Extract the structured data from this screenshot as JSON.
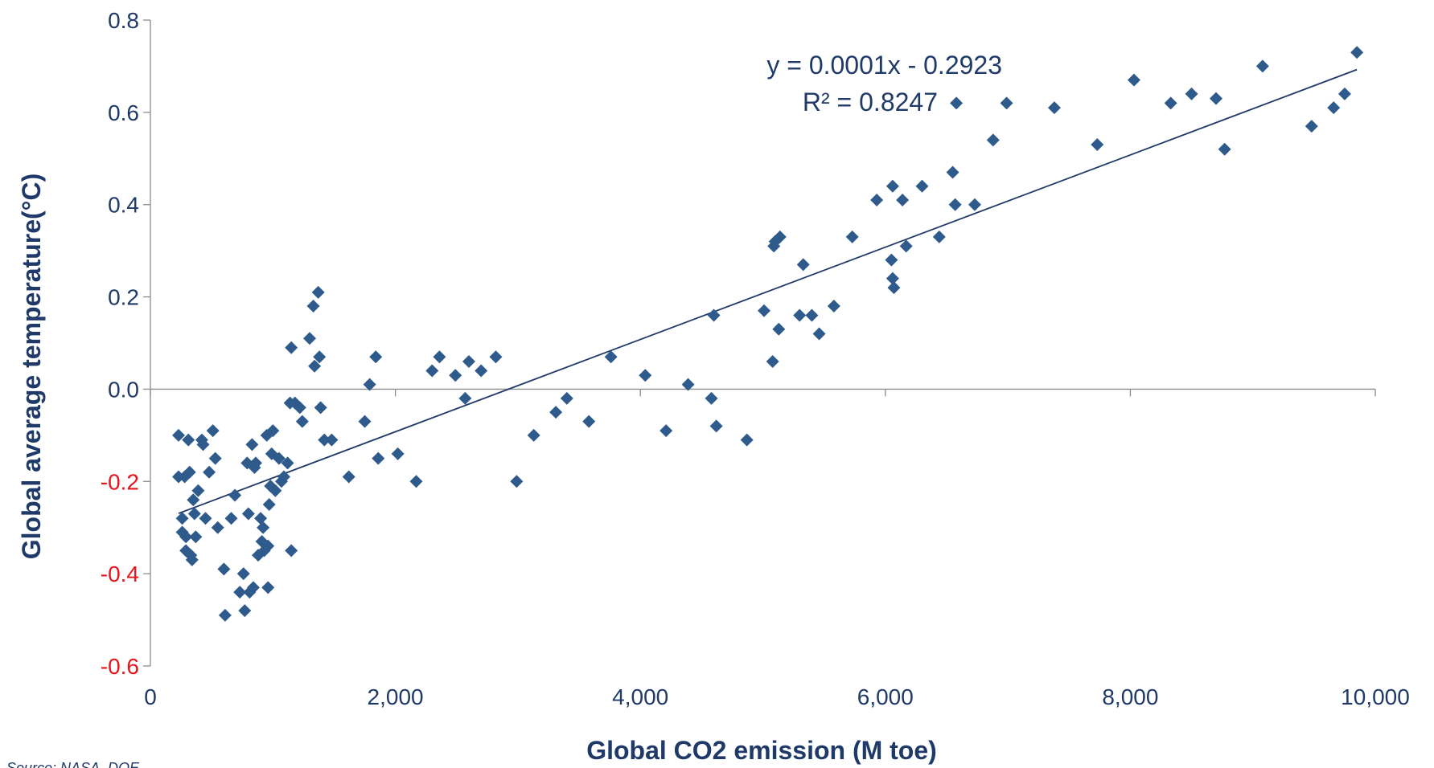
{
  "chart_data": {
    "type": "scatter",
    "title": "",
    "xlabel": "Global CO2 emission (M toe)",
    "ylabel": "Global average temperature(°C)",
    "xlim": [
      0,
      10000
    ],
    "ylim": [
      -0.6,
      0.8
    ],
    "x_ticks": [
      0,
      2000,
      4000,
      6000,
      8000,
      10000
    ],
    "x_tick_labels": [
      "0",
      "2,000",
      "4,000",
      "6,000",
      "8,000",
      "10,000"
    ],
    "y_ticks": [
      0.8,
      0.6,
      0.4,
      0.2,
      0.0,
      -0.2,
      -0.4,
      -0.6
    ],
    "y_tick_labels": [
      "0.8",
      "0.6",
      "0.4",
      "0.2",
      "0.0",
      "-0.2",
      "-0.4",
      "-0.6"
    ],
    "negative_tick_color": "#e8141c",
    "positive_tick_color": "#1f3a68",
    "marker_color": "#2e5b8c",
    "trendline_color": "#1f3a68",
    "grid": false,
    "legend": "none",
    "trendline": {
      "slope": 0.0001,
      "intercept": -0.2923,
      "x_range": [
        230,
        9850
      ],
      "equation_label": "y = 0.0001x - 0.2923",
      "r2_label": "R² = 0.8247"
    },
    "source_label": "Source: NASA, DOE",
    "series": [
      {
        "points": [
          [
            230,
            -0.1
          ],
          [
            230,
            -0.19
          ],
          [
            260,
            -0.28
          ],
          [
            260,
            -0.31
          ],
          [
            280,
            -0.19
          ],
          [
            290,
            -0.32
          ],
          [
            290,
            -0.35
          ],
          [
            310,
            -0.11
          ],
          [
            320,
            -0.18
          ],
          [
            330,
            -0.36
          ],
          [
            340,
            -0.37
          ],
          [
            350,
            -0.24
          ],
          [
            360,
            -0.27
          ],
          [
            370,
            -0.32
          ],
          [
            390,
            -0.22
          ],
          [
            420,
            -0.11
          ],
          [
            430,
            -0.12
          ],
          [
            450,
            -0.28
          ],
          [
            480,
            -0.18
          ],
          [
            510,
            -0.09
          ],
          [
            530,
            -0.15
          ],
          [
            550,
            -0.3
          ],
          [
            600,
            -0.39
          ],
          [
            610,
            -0.49
          ],
          [
            660,
            -0.28
          ],
          [
            690,
            -0.23
          ],
          [
            730,
            -0.44
          ],
          [
            760,
            -0.4
          ],
          [
            770,
            -0.48
          ],
          [
            790,
            -0.16
          ],
          [
            800,
            -0.27
          ],
          [
            810,
            -0.44
          ],
          [
            830,
            -0.12
          ],
          [
            840,
            -0.43
          ],
          [
            850,
            -0.17
          ],
          [
            860,
            -0.16
          ],
          [
            880,
            -0.36
          ],
          [
            900,
            -0.28
          ],
          [
            910,
            -0.33
          ],
          [
            920,
            -0.3
          ],
          [
            930,
            -0.35
          ],
          [
            950,
            -0.1
          ],
          [
            960,
            -0.34
          ],
          [
            960,
            -0.43
          ],
          [
            970,
            -0.25
          ],
          [
            980,
            -0.21
          ],
          [
            990,
            -0.14
          ],
          [
            1000,
            -0.09
          ],
          [
            1020,
            -0.22
          ],
          [
            1050,
            -0.15
          ],
          [
            1070,
            -0.2
          ],
          [
            1090,
            -0.19
          ],
          [
            1120,
            -0.16
          ],
          [
            1140,
            -0.03
          ],
          [
            1150,
            -0.35
          ],
          [
            1150,
            0.09
          ],
          [
            1180,
            -0.03
          ],
          [
            1220,
            -0.04
          ],
          [
            1240,
            -0.07
          ],
          [
            1300,
            0.11
          ],
          [
            1330,
            0.18
          ],
          [
            1340,
            0.05
          ],
          [
            1370,
            0.21
          ],
          [
            1380,
            0.07
          ],
          [
            1390,
            -0.04
          ],
          [
            1420,
            -0.11
          ],
          [
            1480,
            -0.11
          ],
          [
            1620,
            -0.19
          ],
          [
            1750,
            -0.07
          ],
          [
            1790,
            0.01
          ],
          [
            1840,
            0.07
          ],
          [
            1860,
            -0.15
          ],
          [
            2020,
            -0.14
          ],
          [
            2170,
            -0.2
          ],
          [
            2300,
            0.04
          ],
          [
            2360,
            0.07
          ],
          [
            2490,
            0.03
          ],
          [
            2570,
            -0.02
          ],
          [
            2600,
            0.06
          ],
          [
            2700,
            0.04
          ],
          [
            2820,
            0.07
          ],
          [
            2990,
            -0.2
          ],
          [
            3130,
            -0.1
          ],
          [
            3310,
            -0.05
          ],
          [
            3400,
            -0.02
          ],
          [
            3580,
            -0.07
          ],
          [
            3760,
            0.07
          ],
          [
            4040,
            0.03
          ],
          [
            4210,
            -0.09
          ],
          [
            4390,
            0.01
          ],
          [
            4580,
            -0.02
          ],
          [
            4600,
            0.16
          ],
          [
            4620,
            -0.08
          ],
          [
            4870,
            -0.11
          ],
          [
            5010,
            0.17
          ],
          [
            5080,
            0.06
          ],
          [
            5090,
            0.31
          ],
          [
            5100,
            0.32
          ],
          [
            5130,
            0.13
          ],
          [
            5140,
            0.33
          ],
          [
            5300,
            0.16
          ],
          [
            5330,
            0.27
          ],
          [
            5400,
            0.16
          ],
          [
            5460,
            0.12
          ],
          [
            5580,
            0.18
          ],
          [
            5730,
            0.33
          ],
          [
            5930,
            0.41
          ],
          [
            6050,
            0.28
          ],
          [
            6060,
            0.44
          ],
          [
            6060,
            0.24
          ],
          [
            6070,
            0.22
          ],
          [
            6140,
            0.41
          ],
          [
            6170,
            0.31
          ],
          [
            6300,
            0.44
          ],
          [
            6440,
            0.33
          ],
          [
            6550,
            0.47
          ],
          [
            6570,
            0.4
          ],
          [
            6580,
            0.62
          ],
          [
            6730,
            0.4
          ],
          [
            6880,
            0.54
          ],
          [
            6990,
            0.62
          ],
          [
            7380,
            0.61
          ],
          [
            7730,
            0.53
          ],
          [
            8030,
            0.67
          ],
          [
            8330,
            0.62
          ],
          [
            8500,
            0.64
          ],
          [
            8700,
            0.63
          ],
          [
            8770,
            0.52
          ],
          [
            9080,
            0.7
          ],
          [
            9480,
            0.57
          ],
          [
            9660,
            0.61
          ],
          [
            9750,
            0.64
          ],
          [
            9850,
            0.73
          ]
        ]
      }
    ]
  }
}
